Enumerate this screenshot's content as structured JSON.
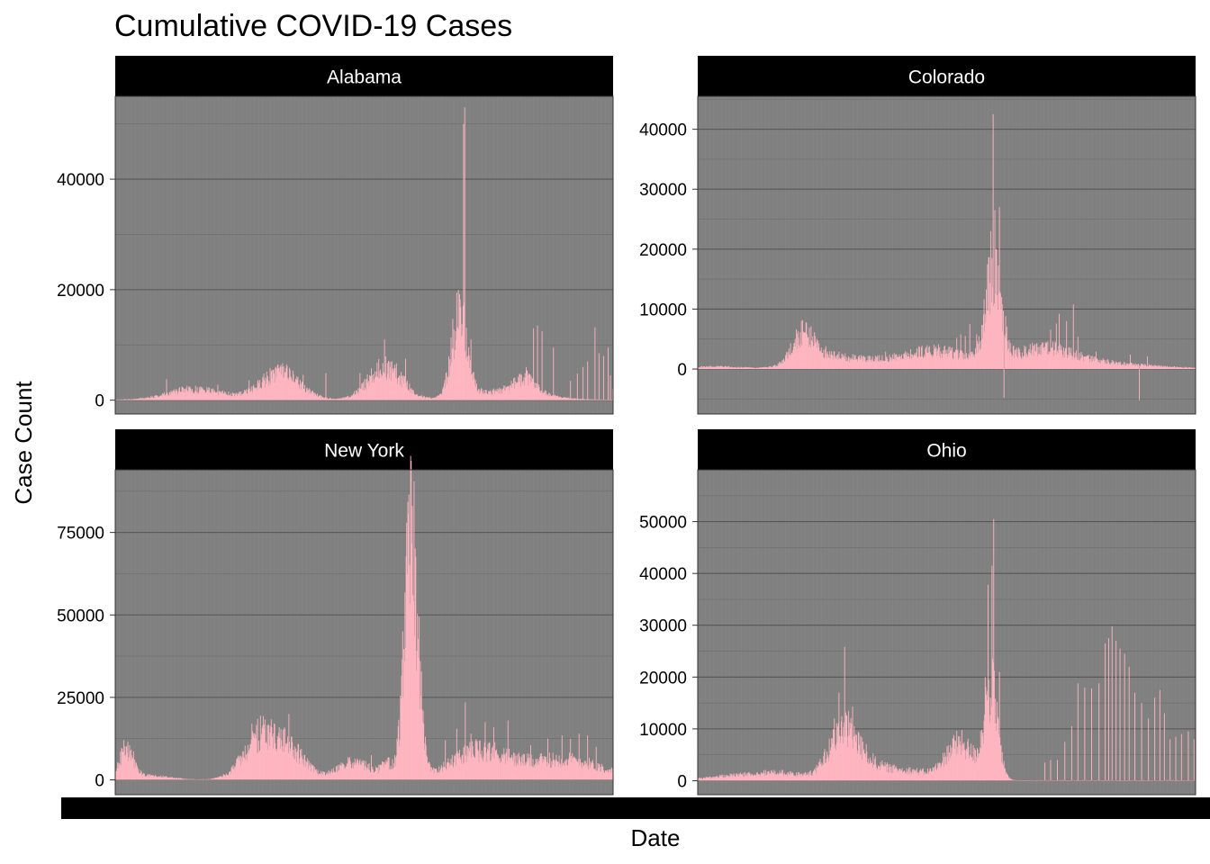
{
  "chart_data": {
    "type": "bar",
    "title": "Cumulative COVID-19 Cases",
    "xlabel": "Date",
    "ylabel": "Case Count",
    "grid": true,
    "facet_layout": "2x2",
    "bar_color": "#ffb6c1",
    "panel_background": "#808080",
    "strip_background": "#000000",
    "strip_text_color": "#ffffff",
    "x_range_days": [
      0,
      875
    ],
    "panels": [
      {
        "name": "Alabama",
        "ylim": [
          -2500,
          55000
        ],
        "yticks": [
          0,
          20000,
          40000
        ],
        "waves": [
          {
            "c": 140,
            "w": 48,
            "h": 1900
          },
          {
            "c": 290,
            "w": 35,
            "h": 4800
          },
          {
            "c": 475,
            "w": 30,
            "h": 5800
          },
          {
            "c": 605,
            "w": 14,
            "h": 14500
          },
          {
            "c": 690,
            "w": 60,
            "h": 1600
          },
          {
            "c": 720,
            "w": 18,
            "h": 2500
          }
        ],
        "spikes": [
          {
            "d": 90,
            "v": 3800
          },
          {
            "d": 180,
            "v": 2800
          },
          {
            "d": 235,
            "v": 3600
          },
          {
            "d": 330,
            "v": 4600
          },
          {
            "d": 370,
            "v": 4900
          },
          {
            "d": 430,
            "v": 4900
          },
          {
            "d": 460,
            "v": 6800
          },
          {
            "d": 473,
            "v": 11000
          },
          {
            "d": 510,
            "v": 7500
          },
          {
            "d": 595,
            "v": 12800
          },
          {
            "d": 598,
            "v": 12500
          },
          {
            "d": 612,
            "v": 50000
          },
          {
            "d": 614,
            "v": 53000
          },
          {
            "d": 625,
            "v": 11000
          },
          {
            "d": 700,
            "v": 4000
          },
          {
            "d": 722,
            "v": 6000
          },
          {
            "d": 735,
            "v": 13000
          },
          {
            "d": 742,
            "v": 13500
          },
          {
            "d": 750,
            "v": 12500
          },
          {
            "d": 770,
            "v": 9500
          },
          {
            "d": 800,
            "v": 3500
          },
          {
            "d": 812,
            "v": 4800
          },
          {
            "d": 822,
            "v": 6000
          },
          {
            "d": 830,
            "v": 7000
          },
          {
            "d": 843,
            "v": 13200
          },
          {
            "d": 850,
            "v": 8500
          },
          {
            "d": 858,
            "v": 8000
          },
          {
            "d": 866,
            "v": 9500
          },
          {
            "d": 870,
            "v": 4500
          },
          {
            "d": 874,
            "v": 2000
          }
        ]
      },
      {
        "name": "Colorado",
        "ylim": [
          -7500,
          45500
        ],
        "yticks": [
          0,
          10000,
          20000,
          30000,
          40000
        ],
        "waves": [
          {
            "c": 35,
            "w": 40,
            "h": 350
          },
          {
            "c": 185,
            "w": 18,
            "h": 4700
          },
          {
            "c": 215,
            "w": 45,
            "h": 1600
          },
          {
            "c": 300,
            "w": 60,
            "h": 1100
          },
          {
            "c": 420,
            "w": 55,
            "h": 2800
          },
          {
            "c": 520,
            "w": 14,
            "h": 15000
          },
          {
            "c": 605,
            "w": 50,
            "h": 2600
          },
          {
            "c": 680,
            "w": 100,
            "h": 1000
          }
        ],
        "spikes": [
          {
            "d": 185,
            "v": 6300
          },
          {
            "d": 192,
            "v": 5800
          },
          {
            "d": 225,
            "v": 3800
          },
          {
            "d": 330,
            "v": 2900
          },
          {
            "d": 455,
            "v": 5200
          },
          {
            "d": 462,
            "v": 5800
          },
          {
            "d": 470,
            "v": 5500
          },
          {
            "d": 478,
            "v": 7500
          },
          {
            "d": 490,
            "v": 5800
          },
          {
            "d": 508,
            "v": 9800
          },
          {
            "d": 515,
            "v": 23000
          },
          {
            "d": 519,
            "v": 42500
          },
          {
            "d": 522,
            "v": 26500
          },
          {
            "d": 530,
            "v": 27000
          },
          {
            "d": 535,
            "v": 10800
          },
          {
            "d": 540,
            "v": 5200
          },
          {
            "d": 538,
            "v": -4800
          },
          {
            "d": 595,
            "v": 4200
          },
          {
            "d": 620,
            "v": 6600
          },
          {
            "d": 630,
            "v": 7600
          },
          {
            "d": 635,
            "v": 9200
          },
          {
            "d": 648,
            "v": 8000
          },
          {
            "d": 660,
            "v": 10800
          },
          {
            "d": 668,
            "v": 5400
          },
          {
            "d": 700,
            "v": 2900
          },
          {
            "d": 760,
            "v": 2400
          },
          {
            "d": 776,
            "v": -5200
          },
          {
            "d": 790,
            "v": 2100
          }
        ]
      },
      {
        "name": "New York",
        "ylim": [
          -4500,
          94000
        ],
        "yticks": [
          0,
          25000,
          50000,
          75000
        ],
        "waves": [
          {
            "c": 20,
            "w": 12,
            "h": 8800
          },
          {
            "c": 60,
            "w": 35,
            "h": 1200
          },
          {
            "c": 260,
            "w": 32,
            "h": 13500
          },
          {
            "c": 315,
            "w": 25,
            "h": 6000
          },
          {
            "c": 420,
            "w": 30,
            "h": 5200
          },
          {
            "c": 478,
            "w": 10,
            "h": 4000
          },
          {
            "c": 520,
            "w": 12,
            "h": 70000
          },
          {
            "c": 640,
            "w": 50,
            "h": 8500
          },
          {
            "c": 790,
            "w": 65,
            "h": 6000
          }
        ],
        "spikes": [
          {
            "d": 15,
            "v": 12000
          },
          {
            "d": 25,
            "v": 10500
          },
          {
            "d": 240,
            "v": 17000
          },
          {
            "d": 250,
            "v": 18500
          },
          {
            "d": 255,
            "v": 19500
          },
          {
            "d": 270,
            "v": 16500
          },
          {
            "d": 305,
            "v": 20000
          },
          {
            "d": 300,
            "v": 11000
          },
          {
            "d": 410,
            "v": 6500
          },
          {
            "d": 450,
            "v": 7500
          },
          {
            "d": 505,
            "v": 45000
          },
          {
            "d": 512,
            "v": 78000
          },
          {
            "d": 516,
            "v": 86500
          },
          {
            "d": 522,
            "v": 83000
          },
          {
            "d": 525,
            "v": 90500
          },
          {
            "d": 580,
            "v": 12000
          },
          {
            "d": 600,
            "v": 15500
          },
          {
            "d": 615,
            "v": 23500
          },
          {
            "d": 625,
            "v": 14000
          },
          {
            "d": 650,
            "v": 17500
          },
          {
            "d": 665,
            "v": 16000
          },
          {
            "d": 690,
            "v": 18000
          },
          {
            "d": 730,
            "v": 10500
          },
          {
            "d": 760,
            "v": 12500
          },
          {
            "d": 785,
            "v": 13500
          },
          {
            "d": 800,
            "v": 12500
          },
          {
            "d": 815,
            "v": 14000
          },
          {
            "d": 830,
            "v": 13500
          },
          {
            "d": 845,
            "v": 10000
          }
        ]
      },
      {
        "name": "Ohio",
        "ylim": [
          -2700,
          60000
        ],
        "yticks": [
          0,
          10000,
          20000,
          30000,
          40000,
          50000
        ],
        "waves": [
          {
            "c": 50,
            "w": 45,
            "h": 600
          },
          {
            "c": 140,
            "w": 50,
            "h": 1400
          },
          {
            "c": 255,
            "w": 25,
            "h": 9000
          },
          {
            "c": 300,
            "w": 30,
            "h": 2500
          },
          {
            "c": 370,
            "w": 35,
            "h": 1800
          },
          {
            "c": 460,
            "w": 25,
            "h": 7000
          },
          {
            "c": 515,
            "w": 12,
            "h": 17000
          }
        ],
        "spikes": [
          {
            "d": 240,
            "v": 12000
          },
          {
            "d": 248,
            "v": 17000
          },
          {
            "d": 258,
            "v": 25800
          },
          {
            "d": 265,
            "v": 13500
          },
          {
            "d": 272,
            "v": 14300
          },
          {
            "d": 505,
            "v": 20000
          },
          {
            "d": 510,
            "v": 37800
          },
          {
            "d": 517,
            "v": 41500
          },
          {
            "d": 520,
            "v": 50500
          },
          {
            "d": 530,
            "v": 21000
          },
          {
            "d": 610,
            "v": 3500
          },
          {
            "d": 620,
            "v": 4000
          },
          {
            "d": 632,
            "v": 4000
          },
          {
            "d": 645,
            "v": 7500
          },
          {
            "d": 657,
            "v": 10500
          },
          {
            "d": 668,
            "v": 18800
          },
          {
            "d": 680,
            "v": 18000
          },
          {
            "d": 692,
            "v": 17800
          },
          {
            "d": 705,
            "v": 18800
          },
          {
            "d": 716,
            "v": 26500
          },
          {
            "d": 722,
            "v": 27500
          },
          {
            "d": 728,
            "v": 29800
          },
          {
            "d": 735,
            "v": 27000
          },
          {
            "d": 742,
            "v": 25500
          },
          {
            "d": 750,
            "v": 24500
          },
          {
            "d": 758,
            "v": 22000
          },
          {
            "d": 768,
            "v": 17000
          },
          {
            "d": 780,
            "v": 15000
          },
          {
            "d": 792,
            "v": 12000
          },
          {
            "d": 803,
            "v": 16000
          },
          {
            "d": 812,
            "v": 17500
          },
          {
            "d": 820,
            "v": 13000
          },
          {
            "d": 830,
            "v": 8000
          },
          {
            "d": 840,
            "v": 8500
          },
          {
            "d": 850,
            "v": 9000
          },
          {
            "d": 862,
            "v": 9500
          },
          {
            "d": 872,
            "v": 8000
          }
        ]
      }
    ]
  }
}
